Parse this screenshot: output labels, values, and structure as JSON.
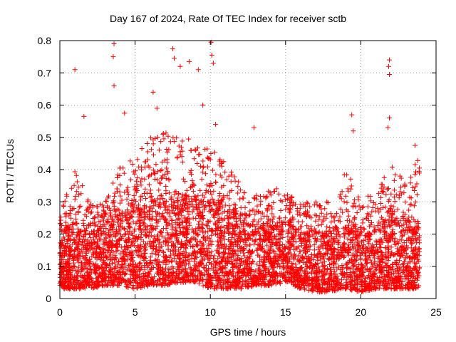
{
  "chart_data": {
    "type": "scatter",
    "title": "Day 167 of 2024, Rate Of TEC Index for receiver sctb",
    "xlabel": "GPS time / hours",
    "ylabel": "ROTI / TECUs",
    "xlim": [
      0,
      25
    ],
    "ylim": [
      0,
      0.8
    ],
    "xticks": [
      0,
      5,
      10,
      15,
      20,
      25
    ],
    "yticks": [
      0,
      0.1,
      0.2,
      0.3,
      0.4,
      0.5,
      0.6,
      0.7,
      0.8
    ],
    "grid": true,
    "marker": "+",
    "color": "#ff0000",
    "data_extent_hours": [
      0,
      23.9
    ],
    "notable_points": [
      {
        "x": 1.0,
        "y": 0.71
      },
      {
        "x": 1.6,
        "y": 0.565
      },
      {
        "x": 3.6,
        "y": 0.79
      },
      {
        "x": 3.55,
        "y": 0.75
      },
      {
        "x": 3.6,
        "y": 0.66
      },
      {
        "x": 4.3,
        "y": 0.575
      },
      {
        "x": 6.2,
        "y": 0.64
      },
      {
        "x": 6.45,
        "y": 0.59
      },
      {
        "x": 7.5,
        "y": 0.775
      },
      {
        "x": 7.6,
        "y": 0.745
      },
      {
        "x": 8.0,
        "y": 0.72
      },
      {
        "x": 8.6,
        "y": 0.735
      },
      {
        "x": 9.2,
        "y": 0.71
      },
      {
        "x": 9.5,
        "y": 0.6
      },
      {
        "x": 10.05,
        "y": 0.795
      },
      {
        "x": 10.1,
        "y": 0.755
      },
      {
        "x": 10.2,
        "y": 0.73
      },
      {
        "x": 10.35,
        "y": 0.54
      },
      {
        "x": 12.9,
        "y": 0.53
      },
      {
        "x": 19.4,
        "y": 0.57
      },
      {
        "x": 19.5,
        "y": 0.52
      },
      {
        "x": 21.9,
        "y": 0.74
      },
      {
        "x": 21.85,
        "y": 0.72
      },
      {
        "x": 21.9,
        "y": 0.695
      },
      {
        "x": 21.9,
        "y": 0.56
      },
      {
        "x": 21.8,
        "y": 0.53
      },
      {
        "x": 23.6,
        "y": 0.475
      }
    ],
    "envelope_hours": [
      0,
      1,
      2,
      3,
      4,
      5,
      6,
      7,
      8,
      9,
      10,
      11,
      12,
      13,
      14,
      15,
      16,
      17,
      18,
      19,
      20,
      21,
      22,
      23,
      23.9
    ],
    "envelope_upper": [
      0.26,
      0.4,
      0.3,
      0.3,
      0.42,
      0.45,
      0.5,
      0.52,
      0.5,
      0.5,
      0.48,
      0.45,
      0.35,
      0.32,
      0.35,
      0.33,
      0.3,
      0.3,
      0.3,
      0.4,
      0.32,
      0.32,
      0.43,
      0.35,
      0.46
    ],
    "envelope_dense_upper": [
      0.2,
      0.22,
      0.2,
      0.22,
      0.26,
      0.28,
      0.3,
      0.3,
      0.3,
      0.3,
      0.3,
      0.27,
      0.24,
      0.22,
      0.22,
      0.24,
      0.2,
      0.2,
      0.2,
      0.22,
      0.2,
      0.2,
      0.25,
      0.22,
      0.22
    ],
    "envelope_lower": [
      0.03,
      0.03,
      0.03,
      0.04,
      0.04,
      0.03,
      0.04,
      0.04,
      0.05,
      0.05,
      0.03,
      0.03,
      0.03,
      0.04,
      0.04,
      0.05,
      0.03,
      0.02,
      0.02,
      0.03,
      0.02,
      0.03,
      0.03,
      0.03,
      0.03
    ]
  }
}
